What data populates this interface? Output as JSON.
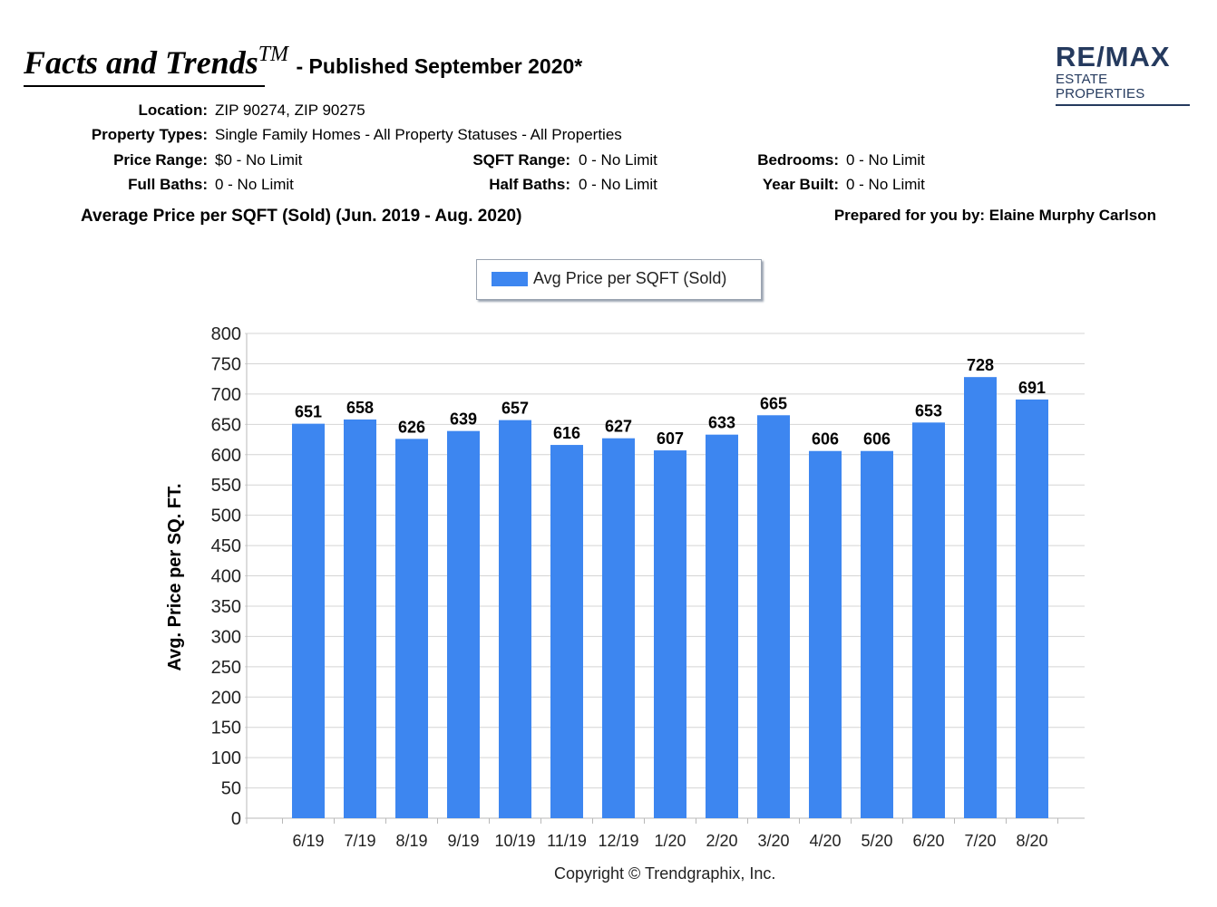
{
  "header": {
    "brand_name": "Facts and Trends",
    "brand_tm": "TM",
    "published": "- Published September 2020*",
    "logo_main": "RE/MAX",
    "logo_sub": "ESTATE PROPERTIES"
  },
  "criteria": {
    "location_label": "Location:",
    "location_value": "ZIP 90274, ZIP 90275",
    "property_types_label": "Property Types:",
    "property_types_value": "Single Family Homes - All Property Statuses - All Properties",
    "price_range_label": "Price Range:",
    "price_range_value": "$0 - No Limit",
    "sqft_range_label": "SQFT Range:",
    "sqft_range_value": "0 - No Limit",
    "bedrooms_label": "Bedrooms:",
    "bedrooms_value": "0 - No Limit",
    "full_baths_label": "Full Baths:",
    "full_baths_value": "0 - No Limit",
    "half_baths_label": "Half Baths:",
    "half_baths_value": "0 - No Limit",
    "year_built_label": "Year Built:",
    "year_built_value": "0 - No Limit"
  },
  "report": {
    "subtitle": "Average Price per SQFT (Sold) (Jun. 2019 - Aug. 2020)",
    "prepared_by": "Prepared for you by: Elaine Murphy Carlson",
    "copyright": "Copyright © Trendgraphix, Inc."
  },
  "chart_data": {
    "type": "bar",
    "title": "",
    "xlabel": "",
    "ylabel": "Avg. Price per SQ. FT.",
    "ylim": [
      0,
      800
    ],
    "yticks": [
      0,
      50,
      100,
      150,
      200,
      250,
      300,
      350,
      400,
      450,
      500,
      550,
      600,
      650,
      700,
      750,
      800
    ],
    "grid": true,
    "legend_position": "top-center",
    "color": "#3d86f0",
    "categories": [
      "6/19",
      "7/19",
      "8/19",
      "9/19",
      "10/19",
      "11/19",
      "12/19",
      "1/20",
      "2/20",
      "3/20",
      "4/20",
      "5/20",
      "6/20",
      "7/20",
      "8/20"
    ],
    "series": [
      {
        "name": "Avg Price per SQFT (Sold)",
        "values": [
          651,
          658,
          626,
          639,
          657,
          616,
          627,
          607,
          633,
          665,
          606,
          606,
          653,
          728,
          691
        ]
      }
    ]
  }
}
